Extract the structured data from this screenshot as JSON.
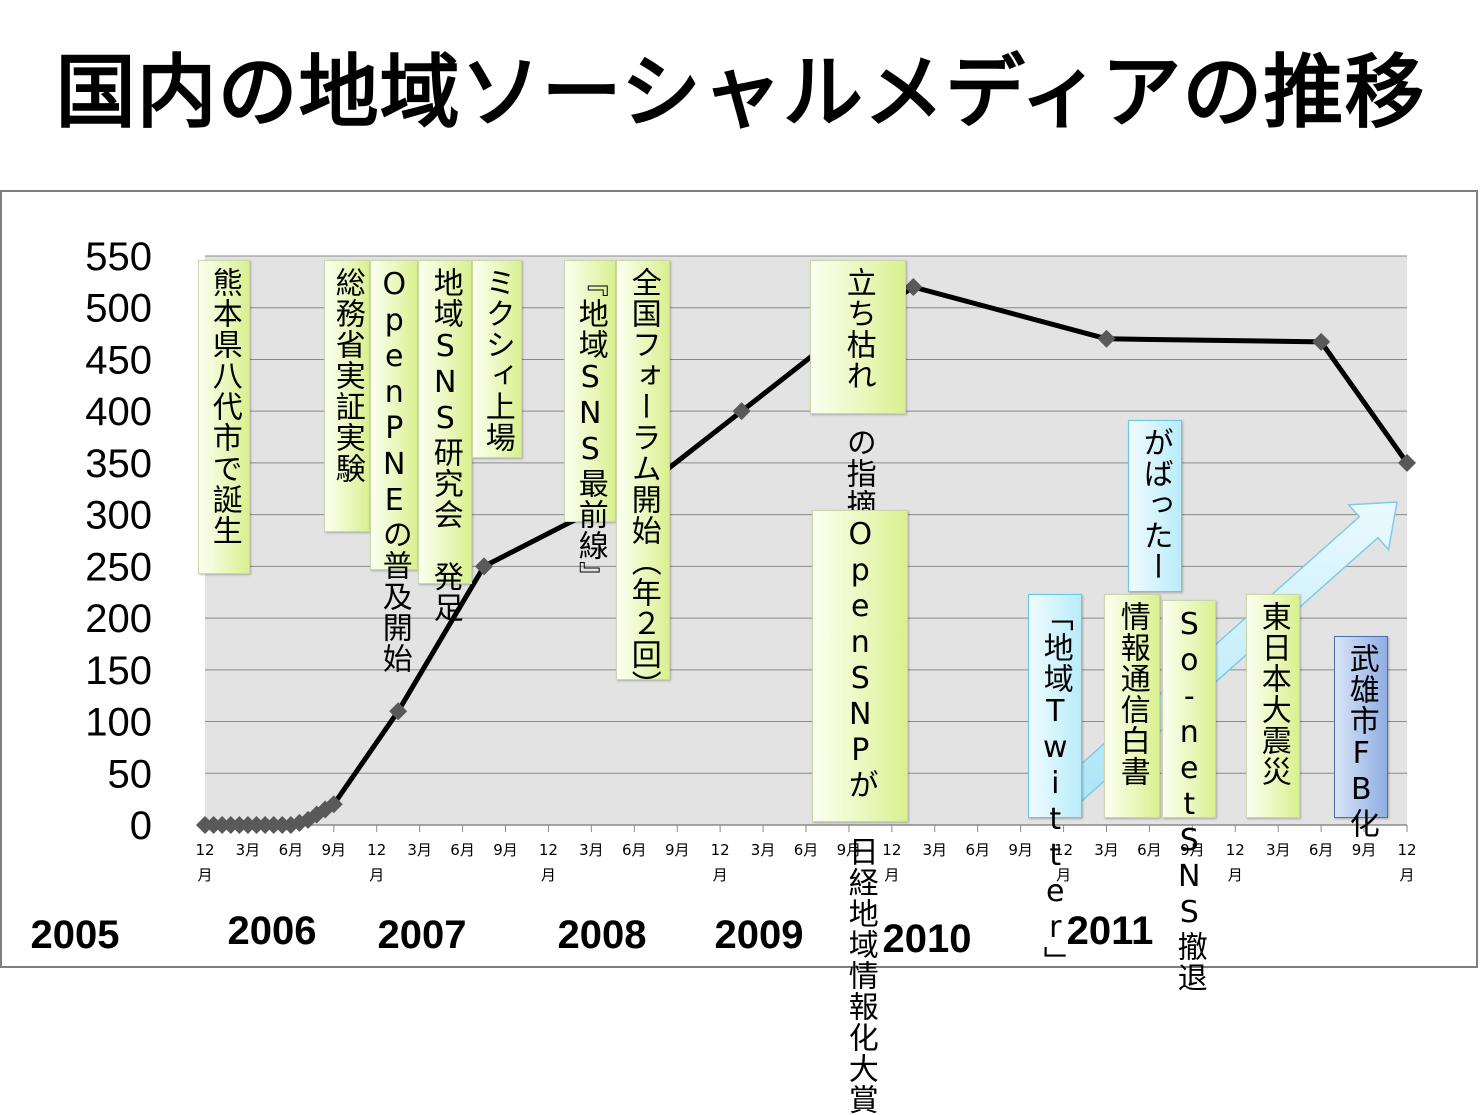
{
  "title": "国内の地域ソーシャルメディアの推移",
  "chart_data": {
    "type": "line",
    "ylim": [
      0,
      550
    ],
    "yticks": [
      0,
      50,
      100,
      150,
      200,
      250,
      300,
      350,
      400,
      450,
      500,
      550
    ],
    "x_tick_labels": [
      "12月",
      "3月",
      "6月",
      "9月",
      "12月",
      "3月",
      "6月",
      "9月",
      "12月",
      "3月",
      "6月",
      "9月",
      "12月",
      "3月",
      "6月",
      "9月",
      "12月",
      "3月",
      "6月",
      "9月",
      "12月",
      "3月",
      "6月",
      "9月",
      "12月",
      "3月",
      "6月",
      "9月",
      "12月"
    ],
    "years": [
      "2005",
      "2006",
      "2007",
      "2008",
      "2009",
      "2010",
      "2011"
    ],
    "x": [
      0,
      0.2,
      0.4,
      0.6,
      0.8,
      1.0,
      1.2,
      1.4,
      1.6,
      1.8,
      2,
      2.2,
      2.4,
      2.6,
      2.8,
      3,
      4.5,
      6.5,
      10.5,
      12.5,
      14.5,
      16.5,
      21,
      26,
      28
    ],
    "values": [
      0,
      0,
      0,
      0,
      0,
      0,
      0,
      0,
      0,
      0,
      0,
      2,
      5,
      10,
      15,
      20,
      110,
      250,
      335,
      400,
      465,
      520,
      470,
      467,
      350
    ],
    "line_color": "#000000",
    "marker_color": "#595959",
    "grid": true
  },
  "annotations": [
    {
      "text": "熊本県八代市で誕生",
      "style": "green"
    },
    {
      "text": "総務省実証実験",
      "style": "green"
    },
    {
      "text": "OpenPNEの普及開始",
      "style": "green"
    },
    {
      "text": "地域SNS研究会　発足",
      "style": "green"
    },
    {
      "text": "ミクシィ上場",
      "style": "green"
    },
    {
      "text": "『地域SNS最前線』",
      "style": "green"
    },
    {
      "text": "全国フォーラム開始（年２回）",
      "style": "green"
    },
    {
      "text": "立ち枯れ\nの指摘",
      "style": "green"
    },
    {
      "text": "OpenSNPが\n日経地域情報化大賞",
      "style": "green"
    },
    {
      "text": "がばったー",
      "style": "blue"
    },
    {
      "text": "「地域Twitter」",
      "style": "blue"
    },
    {
      "text": "情報通信白書",
      "style": "green"
    },
    {
      "text": "So-netSNS撤退",
      "style": "green"
    },
    {
      "text": "東日本大震災",
      "style": "green"
    },
    {
      "text": "武雄市FB化",
      "style": "dblue"
    }
  ]
}
